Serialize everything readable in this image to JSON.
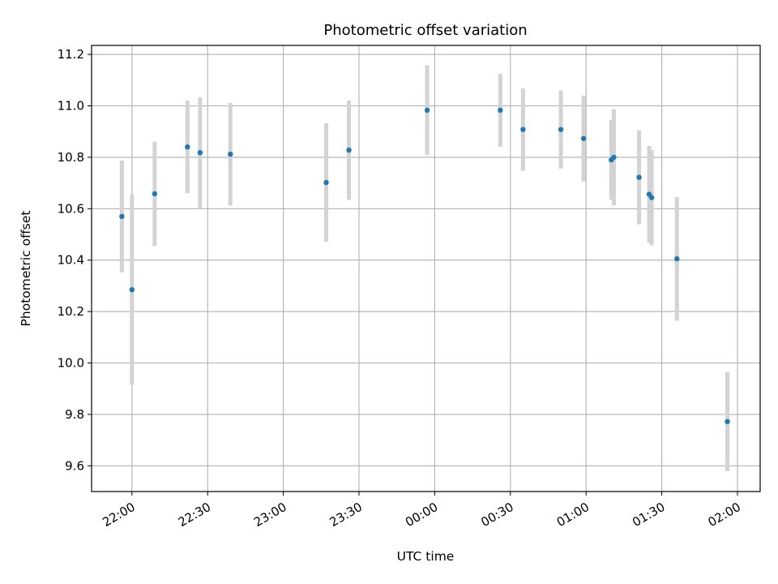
{
  "chart_data": {
    "type": "scatter",
    "title": "Photometric offset variation",
    "xlabel": "UTC time",
    "ylabel": "Photometric offset",
    "xlim": [
      "21:44",
      "02:09"
    ],
    "ylim": [
      9.5,
      11.235
    ],
    "grid": true,
    "x_ticks": [
      "22:00",
      "22:30",
      "23:00",
      "23:30",
      "00:00",
      "00:30",
      "01:00",
      "01:30",
      "02:00"
    ],
    "y_ticks": [
      "9.6",
      "9.8",
      "10.0",
      "10.2",
      "10.4",
      "10.6",
      "10.8",
      "11.0",
      "11.2"
    ],
    "colors": {
      "point": "#1f77b4",
      "errorbar": "#d3d3d3",
      "grid": "#b0b0b0"
    },
    "points": [
      {
        "x": "21:56",
        "y": 10.57,
        "yerr": 0.217
      },
      {
        "x": "22:00",
        "y": 10.285,
        "yerr": 0.37
      },
      {
        "x": "22:09",
        "y": 10.658,
        "yerr": 0.203
      },
      {
        "x": "22:22",
        "y": 10.84,
        "yerr": 0.18
      },
      {
        "x": "22:27",
        "y": 10.818,
        "yerr": 0.215
      },
      {
        "x": "22:39",
        "y": 10.812,
        "yerr": 0.2
      },
      {
        "x": "23:17",
        "y": 10.702,
        "yerr": 0.23
      },
      {
        "x": "23:26",
        "y": 10.828,
        "yerr": 0.193
      },
      {
        "x": "23:57",
        "y": 10.983,
        "yerr": 0.175
      },
      {
        "x": "00:26",
        "y": 10.983,
        "yerr": 0.142
      },
      {
        "x": "00:35",
        "y": 10.908,
        "yerr": 0.16
      },
      {
        "x": "00:50",
        "y": 10.908,
        "yerr": 0.152
      },
      {
        "x": "00:59",
        "y": 10.873,
        "yerr": 0.167
      },
      {
        "x": "01:10",
        "y": 10.79,
        "yerr": 0.155
      },
      {
        "x": "01:11",
        "y": 10.8,
        "yerr": 0.187
      },
      {
        "x": "01:21",
        "y": 10.722,
        "yerr": 0.183
      },
      {
        "x": "01:25",
        "y": 10.656,
        "yerr": 0.188
      },
      {
        "x": "01:26",
        "y": 10.643,
        "yerr": 0.185
      },
      {
        "x": "01:36",
        "y": 10.405,
        "yerr": 0.24
      },
      {
        "x": "01:56",
        "y": 9.772,
        "yerr": 0.193
      }
    ]
  }
}
